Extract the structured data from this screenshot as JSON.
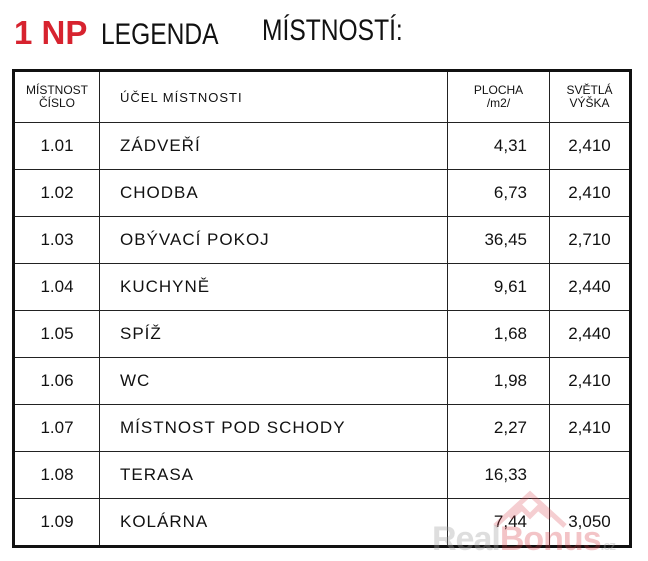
{
  "title": {
    "floor": "1 NP",
    "text1": "LEGENDA",
    "text2": "MÍSTNOSTÍ:"
  },
  "table": {
    "headers": [
      {
        "line1": "MÍSTNOST",
        "line2": "ČÍSLO"
      },
      {
        "line1": "ÚČEL MÍSTNOSTI",
        "line2": ""
      },
      {
        "line1": "PLOCHA",
        "line2": "/m2/"
      },
      {
        "line1": "SVĚTLÁ",
        "line2": "VÝŠKA"
      }
    ],
    "rows": [
      {
        "no": "1.01",
        "name": "ZÁDVEŘÍ",
        "area": "4,31",
        "height": "2,410"
      },
      {
        "no": "1.02",
        "name": "CHODBA",
        "area": "6,73",
        "height": "2,410"
      },
      {
        "no": "1.03",
        "name": "OBÝVACÍ POKOJ",
        "area": "36,45",
        "height": "2,710"
      },
      {
        "no": "1.04",
        "name": "KUCHYNĚ",
        "area": "9,61",
        "height": "2,440"
      },
      {
        "no": "1.05",
        "name": "SPÍŽ",
        "area": "1,68",
        "height": "2,440"
      },
      {
        "no": "1.06",
        "name": "WC",
        "area": "1,98",
        "height": "2,410"
      },
      {
        "no": "1.07",
        "name": "MÍSTNOST POD SCHODY",
        "area": "2,27",
        "height": "2,410"
      },
      {
        "no": "1.08",
        "name": "TERASA",
        "area": "16,33",
        "height": ""
      },
      {
        "no": "1.09",
        "name": "KOLÁRNA",
        "area": "7,44",
        "height": "3,050"
      }
    ]
  },
  "watermark": {
    "part1": "Real",
    "part2": "Bonus",
    "part3": ".cz"
  },
  "colors": {
    "accent": "#d7232f"
  }
}
